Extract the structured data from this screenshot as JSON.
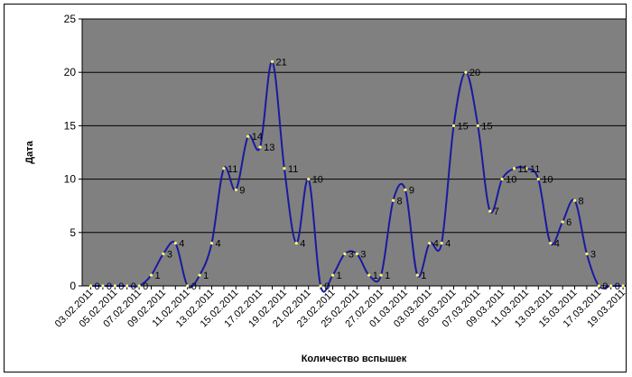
{
  "chart_data": {
    "type": "line",
    "title": "",
    "xlabel": "Количество вспышек",
    "ylabel": "Дата",
    "ylim": [
      0,
      25
    ],
    "y_ticks": [
      0,
      5,
      10,
      15,
      20,
      25
    ],
    "grid": true,
    "plot_background": "#808080",
    "line_color": "#1a1aa0",
    "marker_color": "#ffff66",
    "x_tick_labels": [
      "03.02.2011",
      "05.02.2011",
      "07.02.2011",
      "09.02.2011",
      "11.02.2011",
      "13.02.2011",
      "15.02.2011",
      "17.02.2011",
      "19.02.2011",
      "21.02.2011",
      "23.02.2011",
      "25.02.2011",
      "27.02.2011",
      "01.03.2011",
      "03.03.2011",
      "05.03.2011",
      "07.03.2011",
      "09.03.2011",
      "11.03.2011",
      "13.03.2011",
      "15.03.2011",
      "17.03.2011",
      "19.03.2011"
    ],
    "values": [
      0,
      0,
      0,
      0,
      0,
      1,
      3,
      4,
      0,
      1,
      4,
      11,
      9,
      14,
      13,
      21,
      11,
      4,
      10,
      0,
      1,
      3,
      3,
      1,
      1,
      8,
      9,
      1,
      4,
      4,
      15,
      20,
      15,
      7,
      10,
      11,
      11,
      10,
      4,
      6,
      8,
      3,
      0,
      0,
      0,
      0
    ]
  }
}
